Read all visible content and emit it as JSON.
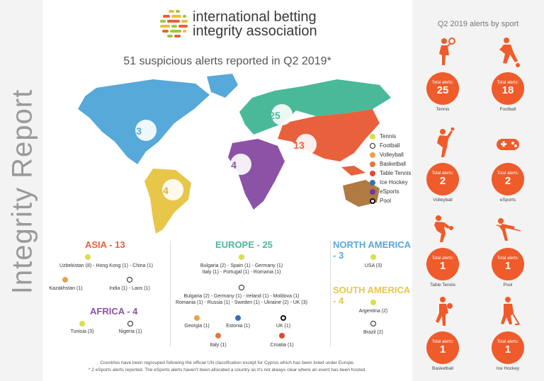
{
  "side_title": "Integrity Report",
  "logo": {
    "line1": "international betting",
    "line2": "integrity association"
  },
  "headline": "51 suspicious  alerts reported in Q2 2019*",
  "map_counts": {
    "north_america": "3",
    "south_america": "4",
    "africa": "4",
    "europe": "25",
    "asia": "13"
  },
  "colors": {
    "accent": "#ef5b2a",
    "asia": "#e8613c",
    "europe": "#49b99a",
    "north_america": "#56a9d9",
    "south_america": "#e8c64a",
    "africa": "#8c52a6",
    "oceania": "#b07a42"
  },
  "legend": [
    {
      "label": "Tennis",
      "color": "#d7e04a"
    },
    {
      "label": "Football",
      "color": "#222222"
    },
    {
      "label": "Volleyball",
      "color": "#e9a34a"
    },
    {
      "label": "Basketball",
      "color": "#e07a3a"
    },
    {
      "label": "Table Tennis",
      "color": "#e04a2a"
    },
    {
      "label": "Ice Hockey",
      "color": "#3a6fb5"
    },
    {
      "label": "eSports",
      "color": "#6b3aa0"
    },
    {
      "label": "Pool",
      "color": "#111111"
    }
  ],
  "asia": {
    "title": "ASIA - 13",
    "tennis": "Uzbekistan (8) - Hong Kong (1) - China (1)",
    "volleyball": "Kazakhstan (1)",
    "football": "India (1) - Laos (1)"
  },
  "africa": {
    "title": "AFRICA - 4",
    "tennis": "Tunisia (3)",
    "football": "Nigeria  (1)"
  },
  "europe": {
    "title": "EUROPE - 25",
    "tennis_line1": "Bulgaria (2) - Spain (1) - Germany (1)",
    "tennis_line2": "Italy (1) - Portugal (1) - Romania (1)",
    "football_line1": "Bulgaria (2) - Germany (1) - Ireland (1) - Moldova (1)",
    "football_line2": "Romania (1) -  Russia (1) - Sweden (1) - Ukraine (2) - UK (3)",
    "volleyball": "Georgia  (1)",
    "icehockey": "Estonia  (1)",
    "pool": "UK  (1)",
    "basketball": "Italy (1)",
    "tabletennis": "Croatia (1)"
  },
  "north_america": {
    "title": "NORTH AMERICA - 3",
    "tennis": "USA (3)"
  },
  "south_america": {
    "title": "SOUTH AMERICA - 4",
    "tennis": "Argentina (2)",
    "football": "Brazil (2)"
  },
  "footnote_1": "Countries have been regrouped following the official UN classification except for Cyprus which has been listed under Europe.",
  "footnote_2": "* 2 eSports alerts reported. The eSports alerts haven't been allocated a country as it's not always clear where an event has been hosted.",
  "right_title": "Q2 2019 alerts by sport",
  "total_label": "Total alerts:",
  "sports": [
    {
      "name": "Tennis",
      "total": "25",
      "icon": "tennis-player-icon"
    },
    {
      "name": "Football",
      "total": "18",
      "icon": "football-player-icon"
    },
    {
      "name": "Volleyball",
      "total": "2",
      "icon": "volleyball-player-icon"
    },
    {
      "name": "eSports",
      "total": "2",
      "icon": "gamepad-icon"
    },
    {
      "name": "Table Tennis",
      "total": "1",
      "icon": "table-tennis-player-icon"
    },
    {
      "name": "Pool",
      "total": "1",
      "icon": "pool-player-icon"
    },
    {
      "name": "Basketball",
      "total": "1",
      "icon": "basketball-player-icon"
    },
    {
      "name": "Ice Hockey",
      "total": "1",
      "icon": "ice-hockey-player-icon"
    }
  ]
}
